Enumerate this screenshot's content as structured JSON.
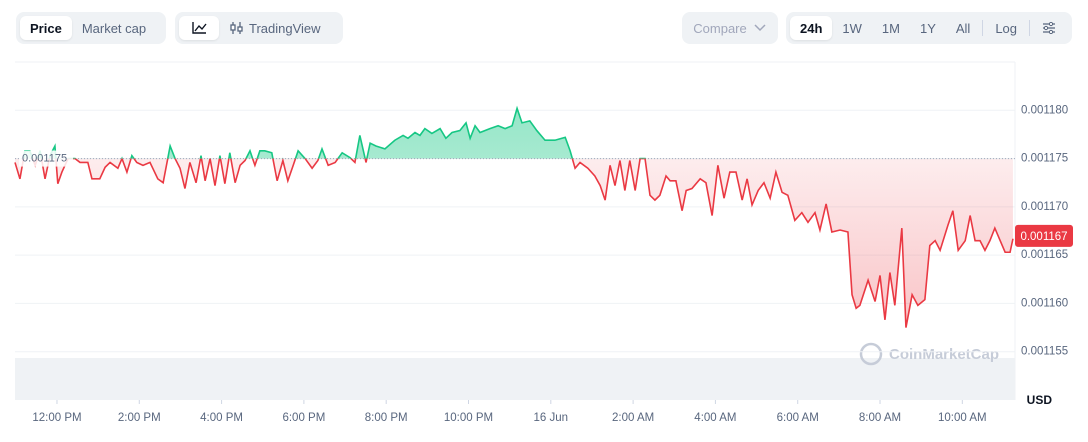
{
  "toolbar": {
    "price": "Price",
    "market_cap": "Market cap",
    "tradingview": "TradingView",
    "compare": "Compare",
    "ranges": [
      "24h",
      "1W",
      "1M",
      "1Y",
      "All"
    ],
    "log": "Log"
  },
  "chart_data": {
    "type": "line",
    "watermark": "CoinMarketCap",
    "currency": "USD",
    "up_color": "#16c784",
    "down_color": "#ea3943",
    "grid": true,
    "baseline": {
      "value": 0.001175,
      "label": "0.001175"
    },
    "price_label": {
      "value": 0.001167,
      "label": "0.001167"
    },
    "xlim": [
      -1.02,
      23.28
    ],
    "ylim": [
      0.00115,
      0.001185
    ],
    "xticks": [
      {
        "value": 0,
        "label": "12:00 PM"
      },
      {
        "value": 2,
        "label": "2:00 PM"
      },
      {
        "value": 4,
        "label": "4:00 PM"
      },
      {
        "value": 6,
        "label": "6:00 PM"
      },
      {
        "value": 8,
        "label": "8:00 PM"
      },
      {
        "value": 10,
        "label": "10:00 PM"
      },
      {
        "value": 12,
        "label": "16 Jun"
      },
      {
        "value": 14,
        "label": "2:00 AM"
      },
      {
        "value": 16,
        "label": "4:00 AM"
      },
      {
        "value": 18,
        "label": "6:00 AM"
      },
      {
        "value": 20,
        "label": "8:00 AM"
      },
      {
        "value": 22,
        "label": "10:00 AM"
      }
    ],
    "yticks": [
      {
        "value": 0.001155,
        "label": "0.001155"
      },
      {
        "value": 0.00116,
        "label": "0.001160"
      },
      {
        "value": 0.001165,
        "label": "0.001165"
      },
      {
        "value": 0.00117,
        "label": "0.001170"
      },
      {
        "value": 0.001175,
        "label": "0.001175"
      },
      {
        "value": 0.00118,
        "label": "0.001180"
      }
    ],
    "x": [
      -1.02,
      -0.9,
      -0.78,
      -0.66,
      -0.53,
      -0.41,
      -0.29,
      -0.17,
      -0.05,
      0.02,
      0.12,
      0.27,
      0.44,
      0.56,
      0.75,
      0.85,
      1.04,
      1.17,
      1.29,
      1.48,
      1.58,
      1.7,
      1.82,
      1.94,
      2.09,
      2.26,
      2.45,
      2.58,
      2.75,
      2.87,
      2.99,
      3.11,
      3.23,
      3.38,
      3.5,
      3.6,
      3.72,
      3.84,
      3.96,
      4.08,
      4.2,
      4.33,
      4.45,
      4.57,
      4.69,
      4.81,
      4.93,
      5.05,
      5.22,
      5.35,
      5.49,
      5.61,
      5.74,
      5.86,
      6.03,
      6.2,
      6.34,
      6.44,
      6.59,
      6.76,
      6.93,
      7.12,
      7.24,
      7.36,
      7.51,
      7.61,
      7.75,
      7.97,
      8.21,
      8.41,
      8.53,
      8.7,
      8.82,
      8.94,
      9.11,
      9.31,
      9.45,
      9.6,
      9.79,
      9.94,
      10.04,
      10.16,
      10.28,
      10.52,
      10.72,
      10.89,
      11.06,
      11.18,
      11.3,
      11.49,
      11.66,
      11.86,
      12.1,
      12.35,
      12.47,
      12.59,
      12.71,
      12.9,
      13.07,
      13.2,
      13.32,
      13.44,
      13.56,
      13.68,
      13.8,
      13.92,
      14.05,
      14.17,
      14.29,
      14.41,
      14.53,
      14.65,
      14.8,
      14.9,
      15.04,
      15.19,
      15.29,
      15.43,
      15.63,
      15.77,
      15.92,
      16.06,
      16.21,
      16.35,
      16.5,
      16.65,
      16.77,
      16.89,
      17.04,
      17.18,
      17.33,
      17.47,
      17.62,
      17.76,
      17.93,
      18.1,
      18.25,
      18.42,
      18.54,
      18.69,
      18.83,
      19.03,
      19.22,
      19.32,
      19.42,
      19.51,
      19.71,
      19.88,
      20.0,
      20.12,
      20.24,
      20.36,
      20.53,
      20.63,
      20.78,
      20.92,
      21.09,
      21.21,
      21.34,
      21.46,
      21.65,
      21.77,
      21.9,
      22.07,
      22.19,
      22.31,
      22.43,
      22.55,
      22.67,
      22.79,
      22.92,
      23.04,
      23.16,
      23.23
    ],
    "values": [
      0.0011746,
      0.0011729,
      0.0011758,
      0.0011758,
      0.0011743,
      0.0011758,
      0.0011729,
      0.0011753,
      0.0011763,
      0.0011724,
      0.0011736,
      0.001175,
      0.001175,
      0.0011746,
      0.0011746,
      0.0011729,
      0.0011729,
      0.0011741,
      0.0011746,
      0.001174,
      0.001175,
      0.0011736,
      0.0011753,
      0.0011746,
      0.0011743,
      0.0011746,
      0.0011729,
      0.0011725,
      0.0011763,
      0.001175,
      0.001174,
      0.0011719,
      0.0011746,
      0.0011725,
      0.0011753,
      0.0011727,
      0.001175,
      0.0011722,
      0.0011753,
      0.0011724,
      0.0011756,
      0.0011725,
      0.0011743,
      0.0011748,
      0.0011758,
      0.0011743,
      0.0011758,
      0.0011758,
      0.0011756,
      0.0011727,
      0.0011748,
      0.0011727,
      0.0011743,
      0.0011758,
      0.001175,
      0.001174,
      0.0011748,
      0.001176,
      0.0011743,
      0.0011746,
      0.0011756,
      0.0011751,
      0.0011746,
      0.0011774,
      0.0011746,
      0.0011766,
      0.0011763,
      0.001176,
      0.0011769,
      0.0011774,
      0.0011771,
      0.0011777,
      0.0011774,
      0.0011781,
      0.0011776,
      0.0011781,
      0.0011771,
      0.0011777,
      0.0011779,
      0.0011787,
      0.0011771,
      0.0011784,
      0.0011777,
      0.0011781,
      0.0011784,
      0.0011781,
      0.0011784,
      0.0011802,
      0.0011787,
      0.0011789,
      0.0011779,
      0.0011769,
      0.0011769,
      0.0011772,
      0.0011758,
      0.001174,
      0.0011746,
      0.001174,
      0.0011732,
      0.0011722,
      0.0011707,
      0.0011743,
      0.0011722,
      0.0011748,
      0.0011717,
      0.0011748,
      0.0011717,
      0.001175,
      0.001175,
      0.0011712,
      0.0011707,
      0.0011712,
      0.0011732,
      0.0011727,
      0.0011727,
      0.0011696,
      0.0011717,
      0.0011719,
      0.0011729,
      0.0011725,
      0.0011691,
      0.0011743,
      0.0011709,
      0.0011736,
      0.0011736,
      0.0011707,
      0.0011729,
      0.0011702,
      0.0011717,
      0.0011725,
      0.0011709,
      0.0011736,
      0.0011715,
      0.0011712,
      0.0011686,
      0.0011694,
      0.0011684,
      0.0011694,
      0.0011676,
      0.0011703,
      0.0011674,
      0.0011676,
      0.0011674,
      0.0011609,
      0.0011595,
      0.0011598,
      0.0011624,
      0.0011602,
      0.0011629,
      0.0011583,
      0.0011632,
      0.0011598,
      0.0011678,
      0.0011575,
      0.0011609,
      0.0011598,
      0.0011604,
      0.001166,
      0.0011665,
      0.0011655,
      0.0011681,
      0.0011696,
      0.0011655,
      0.0011665,
      0.0011691,
      0.0011665,
      0.0011665,
      0.0011655,
      0.0011665,
      0.0011678,
      0.0011665,
      0.0011653,
      0.0011653,
      0.0011667
    ]
  }
}
